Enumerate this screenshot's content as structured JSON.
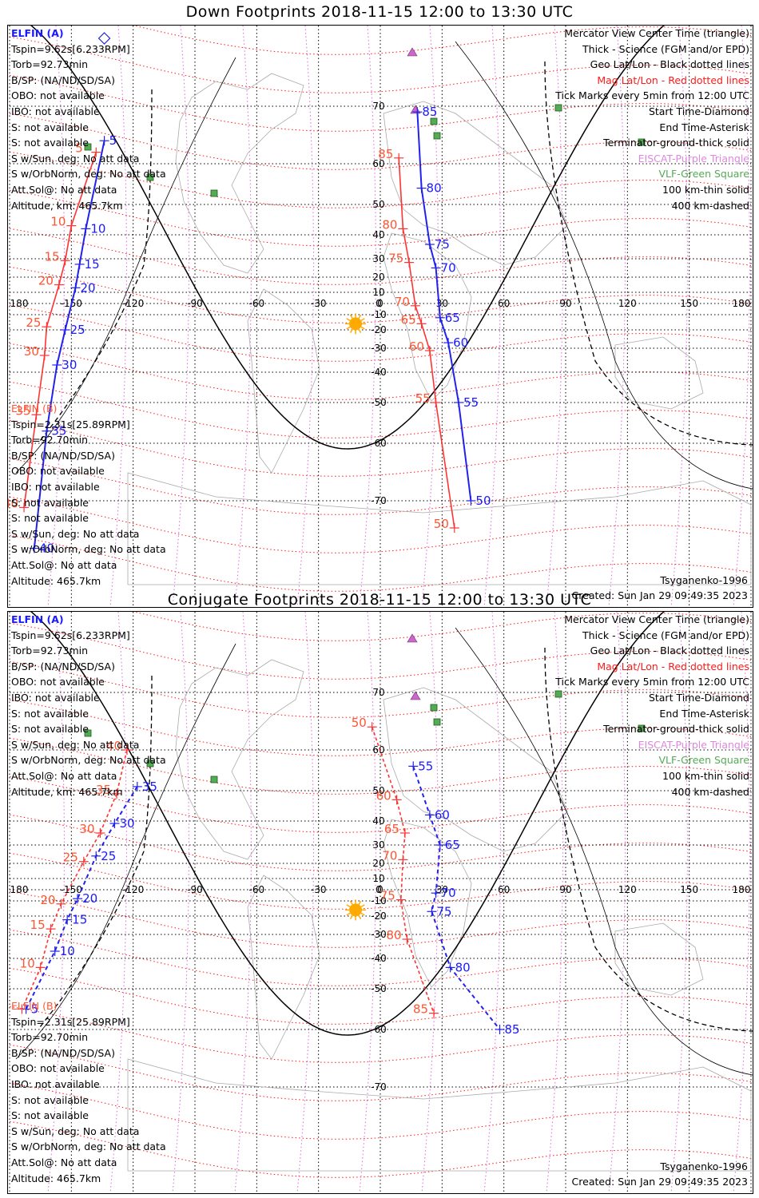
{
  "panels": [
    {
      "title": "Down Footprints 2018-11-15 12:00 to 13:30 UTC",
      "sat_a": {
        "label": "ELFIN (A)",
        "lines": [
          "Tspin=9.62s[6.233RPM]",
          "Torb=92.73min",
          "B/SP: (NA/ND/SD/SA)",
          "OBO: not available",
          "IBO: not available",
          "S: not available",
          "S: not available",
          "S w/Sun, deg: No att data",
          "S w/OrbNorm, deg: No att data",
          "Att.Sol@: No att data",
          "Altitude, km: 465.7km"
        ]
      },
      "sat_b": {
        "label": "ELFIN (B)",
        "lines": [
          "Tspin=2.31s[25.89RPM]",
          "Torb=92.70min",
          "B/SP: (NA/ND/SD/SA)",
          "OBO: not available",
          "IBO: not available",
          "S: not available",
          "S: not available",
          "S w/Sun, deg: No att data",
          "S w/OrbNorm, deg: No att data",
          "Att.Sol@: No att data",
          "Altitude: 465.7km"
        ]
      },
      "legend": [
        "Mercator View Center Time (triangle)",
        "Thick - Science (FGM and/or EPD)",
        "Geo Lat/Lon - Black dotted lines",
        "Mag Lat/Lon - Red dotted lines",
        "Tick Marks every 5min from 12:00 UTC",
        "Start Time-Diamond",
        "End Time-Asterisk",
        "Terminator-ground-thick solid",
        "EISCAT-Purple Triangle",
        "VLF-Green Square",
        "100 km-thin solid",
        "400 km-dashed"
      ],
      "model": "Tsyganenko-1996",
      "created": "Created: Sun Jan 29 09:49:35 2023"
    },
    {
      "title": "Conjugate Footprints 2018-11-15 12:00 to 13:30 UTC",
      "sat_a": {
        "label": "ELFIN (A)",
        "lines": [
          "Tspin=9.62s[6.233RPM]",
          "Torb=92.73min",
          "B/SP: (NA/ND/SD/SA)",
          "OBO: not available",
          "IBO: not available",
          "S: not available",
          "S: not available",
          "S w/Sun, deg: No att data",
          "S w/OrbNorm, deg: No att data",
          "Att.Sol@: No att data",
          "Altitude, km: 465.7km"
        ]
      },
      "sat_b": {
        "label": "ELFIN (B)",
        "lines": [
          "Tspin=2.31s[25.89RPM]",
          "Torb=92.70min",
          "B/SP: (NA/ND/SD/SA)",
          "OBO: not available",
          "IBO: not available",
          "S: not available",
          "S: not available",
          "S w/Sun, deg: No att data",
          "S w/OrbNorm, deg: No att data",
          "Att.Sol@: No att data",
          "Altitude: 465.7km"
        ]
      },
      "legend": [
        "Mercator View Center Time (triangle)",
        "Thick - Science (FGM and/or EPD)",
        "Geo Lat/Lon - Black dotted lines",
        "Mag Lat/Lon - Red dotted lines",
        "Tick Marks every 5min from 12:00 UTC",
        "Start Time-Diamond",
        "End Time-Asterisk",
        "Terminator-ground-thick solid",
        "EISCAT-Purple Triangle",
        "VLF-Green Square",
        "100 km-thin solid",
        "400 km-dashed"
      ],
      "model": "Tsyganenko-1996",
      "created": "Created: Sun Jan 29 09:49:35 2023"
    }
  ],
  "map": {
    "lon_ticks": [
      "180",
      "-150",
      "-120",
      "-90",
      "-60",
      "-30",
      "0",
      "30",
      "60",
      "90",
      "120",
      "150",
      "180"
    ],
    "lat_ticks": [
      "70",
      "60",
      "50",
      "40",
      "30",
      "20",
      "10",
      "0",
      "-10",
      "-20",
      "-30",
      "-40",
      "-50",
      "-60",
      "-70"
    ],
    "colors": {
      "track_a": "#2222ee",
      "track_b": "#ff3333",
      "mag_grid": "#ff1a1a",
      "geo_grid": "#000000",
      "mag_lon": "#dd66dd",
      "coast": "#aaaaaa",
      "vlf": "#55aa55",
      "eiscat": "#dd88dd",
      "sun": "#ffaa00"
    }
  },
  "tracks": {
    "down": {
      "a_west": {
        "labels": [
          {
            "t": "5",
            "lon": -134,
            "lat": 64
          },
          {
            "t": "10",
            "lon": -143,
            "lat": 42
          },
          {
            "t": "15",
            "lon": -146,
            "lat": 27
          },
          {
            "t": "20",
            "lon": -148,
            "lat": 13
          },
          {
            "t": "25",
            "lon": -153,
            "lat": -20
          },
          {
            "t": "30",
            "lon": -157,
            "lat": -37
          },
          {
            "t": "35",
            "lon": -162,
            "lat": -57
          },
          {
            "t": "40",
            "lon": -168,
            "lat": -77
          }
        ]
      },
      "b_west": {
        "labels": [
          {
            "t": "5",
            "lon": -138,
            "lat": 62
          },
          {
            "t": "10",
            "lon": -150,
            "lat": 43
          },
          {
            "t": "15",
            "lon": -153,
            "lat": 29
          },
          {
            "t": "20",
            "lon": -156,
            "lat": 15
          },
          {
            "t": "25",
            "lon": -162,
            "lat": -18
          },
          {
            "t": "30",
            "lon": -163,
            "lat": -33
          },
          {
            "t": "35",
            "lon": -167,
            "lat": -53
          },
          {
            "t": "40",
            "lon": -173,
            "lat": -71
          }
        ]
      },
      "a_east": {
        "labels": [
          {
            "t": "85",
            "lon": 18,
            "lat": 69
          },
          {
            "t": "80",
            "lon": 20,
            "lat": 54
          },
          {
            "t": "75",
            "lon": 24,
            "lat": 36
          },
          {
            "t": "70",
            "lon": 27,
            "lat": 25
          },
          {
            "t": "65",
            "lon": 29,
            "lat": -12
          },
          {
            "t": "60",
            "lon": 33,
            "lat": -27
          },
          {
            "t": "55",
            "lon": 38,
            "lat": -50
          },
          {
            "t": "50",
            "lon": 44,
            "lat": -70
          }
        ]
      },
      "b_east": {
        "labels": [
          {
            "t": "85",
            "lon": 9,
            "lat": 61
          },
          {
            "t": "80",
            "lon": 11,
            "lat": 42
          },
          {
            "t": "75",
            "lon": 14,
            "lat": 28
          },
          {
            "t": "70",
            "lon": 17,
            "lat": -2
          },
          {
            "t": "65",
            "lon": 20,
            "lat": -16
          },
          {
            "t": "60",
            "lon": 24,
            "lat": -31
          },
          {
            "t": "55",
            "lon": 27,
            "lat": -50
          },
          {
            "t": "50",
            "lon": 36,
            "lat": -74
          }
        ]
      }
    },
    "conj": {
      "a_west": {
        "labels": [
          {
            "t": "35",
            "lon": -118,
            "lat": 51
          },
          {
            "t": "30",
            "lon": -129,
            "lat": 39
          },
          {
            "t": "25",
            "lon": -138,
            "lat": 24
          },
          {
            "t": "20",
            "lon": -147,
            "lat": -8
          },
          {
            "t": "15",
            "lon": -152,
            "lat": -22
          },
          {
            "t": "10",
            "lon": -158,
            "lat": -37
          },
          {
            "t": "5",
            "lon": -172,
            "lat": -55
          }
        ]
      },
      "b_west": {
        "labels": [
          {
            "t": "40",
            "lon": -123,
            "lat": 60
          },
          {
            "t": "35",
            "lon": -128,
            "lat": 49
          },
          {
            "t": "30",
            "lon": -136,
            "lat": 35
          },
          {
            "t": "25",
            "lon": -144,
            "lat": 21
          },
          {
            "t": "20",
            "lon": -155,
            "lat": -12
          },
          {
            "t": "15",
            "lon": -160,
            "lat": -27
          },
          {
            "t": "10",
            "lon": -165,
            "lat": -43
          },
          {
            "t": "5",
            "lon": -174,
            "lat": -55
          }
        ]
      },
      "a_east": {
        "labels": [
          {
            "t": "55",
            "lon": 16,
            "lat": 56
          },
          {
            "t": "60",
            "lon": 24,
            "lat": 42
          },
          {
            "t": "65",
            "lon": 29,
            "lat": 30
          },
          {
            "t": "70",
            "lon": 27,
            "lat": -3
          },
          {
            "t": "75",
            "lon": 25,
            "lat": -17
          },
          {
            "t": "80",
            "lon": 34,
            "lat": -43
          },
          {
            "t": "85",
            "lon": 58,
            "lat": -60
          }
        ]
      },
      "b_east": {
        "labels": [
          {
            "t": "50",
            "lon": -4,
            "lat": 64
          },
          {
            "t": "60",
            "lon": 8,
            "lat": 47
          },
          {
            "t": "65",
            "lon": 12,
            "lat": 35
          },
          {
            "t": "70",
            "lon": 11,
            "lat": 22
          },
          {
            "t": "75",
            "lon": 10,
            "lat": -9
          },
          {
            "t": "80",
            "lon": 13,
            "lat": -32
          },
          {
            "t": "85",
            "lon": 26,
            "lat": -56
          }
        ]
      }
    }
  }
}
